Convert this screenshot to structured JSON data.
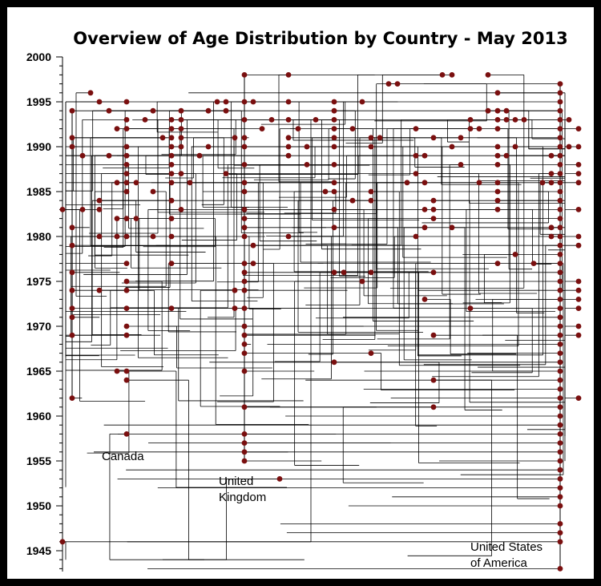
{
  "chart_data": {
    "type": "scatter",
    "title": "Overview of Age Distribution by Country - May 2013",
    "xlabel": "",
    "ylabel": "",
    "ylim": [
      1943,
      2000
    ],
    "yticks": [
      1945,
      1950,
      1955,
      1960,
      1965,
      1970,
      1975,
      1980,
      1985,
      1990,
      1995,
      2000
    ],
    "grid": false,
    "colors": {
      "marker": "#7a0f0f",
      "line": "#000000",
      "frame": "#000000"
    },
    "country_labels": [
      {
        "name": "canada",
        "lines": [
          "Canada"
        ]
      },
      {
        "name": "uk",
        "lines": [
          "United",
          "Kingdom"
        ]
      },
      {
        "name": "usa",
        "lines": [
          "United States",
          "of America"
        ]
      }
    ],
    "groups": {
      "canada": {
        "spine_x": 90,
        "years": [
          1994,
          1991,
          1990,
          1981,
          1979,
          1976,
          1974,
          1972,
          1971,
          1969,
          1962
        ]
      },
      "uk": {
        "spine_x": 305,
        "years": [
          1998,
          1995,
          1993,
          1991,
          1990,
          1988,
          1986,
          1985,
          1983,
          1982,
          1981,
          1980,
          1977,
          1976,
          1975,
          1974,
          1972,
          1970,
          1969,
          1968,
          1967,
          1965,
          1961,
          1958,
          1957,
          1956,
          1955
        ]
      },
      "usa": {
        "spine_x": 699,
        "years": [
          1997,
          1996,
          1995,
          1994,
          1993,
          1992,
          1991,
          1990,
          1989,
          1988,
          1987,
          1986,
          1985,
          1984,
          1983,
          1982,
          1981,
          1980,
          1979,
          1978,
          1977,
          1976,
          1975,
          1974,
          1973,
          1972,
          1971,
          1970,
          1969,
          1968,
          1967,
          1966,
          1965,
          1964,
          1963,
          1962,
          1961,
          1960,
          1959,
          1958,
          1957,
          1956,
          1955,
          1954,
          1953,
          1952,
          1951,
          1950,
          1948,
          1947,
          1946,
          1943
        ]
      }
    },
    "scattered_points": [
      [
        78,
        1946
      ],
      [
        78,
        1983
      ],
      [
        103,
        1983
      ],
      [
        103,
        1989
      ],
      [
        113,
        1996
      ],
      [
        124,
        1995
      ],
      [
        124,
        1984
      ],
      [
        124,
        1983
      ],
      [
        124,
        1980
      ],
      [
        124,
        1974
      ],
      [
        136,
        1994
      ],
      [
        136,
        1989
      ],
      [
        146,
        1992
      ],
      [
        146,
        1986
      ],
      [
        146,
        1982
      ],
      [
        146,
        1980
      ],
      [
        146,
        1965
      ],
      [
        158,
        1995
      ],
      [
        158,
        1993
      ],
      [
        158,
        1992
      ],
      [
        158,
        1990
      ],
      [
        158,
        1989
      ],
      [
        158,
        1988
      ],
      [
        158,
        1987
      ],
      [
        158,
        1986
      ],
      [
        158,
        1985
      ],
      [
        158,
        1982
      ],
      [
        158,
        1980
      ],
      [
        158,
        1977
      ],
      [
        158,
        1975
      ],
      [
        158,
        1974
      ],
      [
        158,
        1972
      ],
      [
        158,
        1970
      ],
      [
        158,
        1969
      ],
      [
        158,
        1965
      ],
      [
        158,
        1964
      ],
      [
        158,
        1958
      ],
      [
        170,
        1986
      ],
      [
        170,
        1982
      ],
      [
        181,
        1993
      ],
      [
        191,
        1994
      ],
      [
        191,
        1985
      ],
      [
        191,
        1980
      ],
      [
        203,
        1991
      ],
      [
        214,
        1993
      ],
      [
        214,
        1992
      ],
      [
        214,
        1991
      ],
      [
        214,
        1990
      ],
      [
        214,
        1989
      ],
      [
        214,
        1988
      ],
      [
        214,
        1987
      ],
      [
        214,
        1986
      ],
      [
        214,
        1984
      ],
      [
        214,
        1982
      ],
      [
        214,
        1980
      ],
      [
        214,
        1977
      ],
      [
        214,
        1972
      ],
      [
        226,
        1994
      ],
      [
        226,
        1993
      ],
      [
        226,
        1992
      ],
      [
        226,
        1991
      ],
      [
        226,
        1990
      ],
      [
        226,
        1987
      ],
      [
        226,
        1983
      ],
      [
        237,
        1986
      ],
      [
        249,
        1989
      ],
      [
        260,
        1994
      ],
      [
        260,
        1990
      ],
      [
        271,
        1995
      ],
      [
        282,
        1995
      ],
      [
        282,
        1994
      ],
      [
        282,
        1987
      ],
      [
        293,
        1974
      ],
      [
        293,
        1972
      ],
      [
        293,
        1991
      ],
      [
        316,
        1995
      ],
      [
        316,
        1979
      ],
      [
        316,
        1977
      ],
      [
        327,
        1992
      ],
      [
        339,
        1993
      ],
      [
        349,
        1953
      ],
      [
        360,
        1998
      ],
      [
        360,
        1995
      ],
      [
        360,
        1993
      ],
      [
        360,
        1991
      ],
      [
        360,
        1990
      ],
      [
        360,
        1989
      ],
      [
        360,
        1980
      ],
      [
        372,
        1992
      ],
      [
        383,
        1990
      ],
      [
        383,
        1988
      ],
      [
        394,
        1993
      ],
      [
        406,
        1985
      ],
      [
        417,
        1995
      ],
      [
        417,
        1994
      ],
      [
        417,
        1993
      ],
      [
        417,
        1992
      ],
      [
        417,
        1991
      ],
      [
        417,
        1990
      ],
      [
        417,
        1988
      ],
      [
        417,
        1986
      ],
      [
        417,
        1985
      ],
      [
        417,
        1983
      ],
      [
        417,
        1981
      ],
      [
        417,
        1976
      ],
      [
        417,
        1966
      ],
      [
        429,
        1976
      ],
      [
        440,
        1992
      ],
      [
        440,
        1984
      ],
      [
        452,
        1995
      ],
      [
        452,
        1975
      ],
      [
        463,
        1991
      ],
      [
        463,
        1990
      ],
      [
        463,
        1985
      ],
      [
        463,
        1984
      ],
      [
        463,
        1976
      ],
      [
        463,
        1967
      ],
      [
        474,
        1991
      ],
      [
        485,
        1997
      ],
      [
        496,
        1997
      ],
      [
        508,
        1986
      ],
      [
        519,
        1992
      ],
      [
        519,
        1989
      ],
      [
        519,
        1987
      ],
      [
        519,
        1980
      ],
      [
        530,
        1989
      ],
      [
        530,
        1986
      ],
      [
        530,
        1983
      ],
      [
        530,
        1981
      ],
      [
        530,
        1973
      ],
      [
        541,
        1991
      ],
      [
        541,
        1984
      ],
      [
        541,
        1983
      ],
      [
        541,
        1982
      ],
      [
        541,
        1976
      ],
      [
        541,
        1969
      ],
      [
        541,
        1964
      ],
      [
        541,
        1961
      ],
      [
        552,
        1998
      ],
      [
        564,
        1998
      ],
      [
        564,
        1990
      ],
      [
        564,
        1981
      ],
      [
        575,
        1988
      ],
      [
        575,
        1991
      ],
      [
        587,
        1993
      ],
      [
        587,
        1992
      ],
      [
        587,
        1972
      ],
      [
        598,
        1992
      ],
      [
        598,
        1986
      ],
      [
        609,
        1998
      ],
      [
        609,
        1994
      ],
      [
        621,
        1996
      ],
      [
        621,
        1994
      ],
      [
        621,
        1993
      ],
      [
        621,
        1992
      ],
      [
        621,
        1990
      ],
      [
        621,
        1989
      ],
      [
        621,
        1988
      ],
      [
        621,
        1986
      ],
      [
        621,
        1985
      ],
      [
        621,
        1984
      ],
      [
        621,
        1983
      ],
      [
        621,
        1977
      ],
      [
        632,
        1994
      ],
      [
        632,
        1993
      ],
      [
        632,
        1989
      ],
      [
        643,
        1993
      ],
      [
        643,
        1990
      ],
      [
        643,
        1978
      ],
      [
        654,
        1993
      ],
      [
        666,
        1977
      ],
      [
        677,
        1986
      ],
      [
        688,
        1989
      ],
      [
        688,
        1987
      ],
      [
        688,
        1986
      ],
      [
        688,
        1981
      ],
      [
        688,
        1980
      ],
      [
        710,
        1993
      ],
      [
        710,
        1990
      ],
      [
        722,
        1992
      ],
      [
        722,
        1990
      ],
      [
        722,
        1988
      ],
      [
        722,
        1987
      ],
      [
        722,
        1986
      ],
      [
        722,
        1983
      ],
      [
        722,
        1980
      ],
      [
        722,
        1979
      ],
      [
        722,
        1975
      ],
      [
        722,
        1974
      ],
      [
        722,
        1973
      ],
      [
        722,
        1972
      ],
      [
        722,
        1970
      ],
      [
        722,
        1969
      ],
      [
        722,
        1962
      ]
    ]
  }
}
